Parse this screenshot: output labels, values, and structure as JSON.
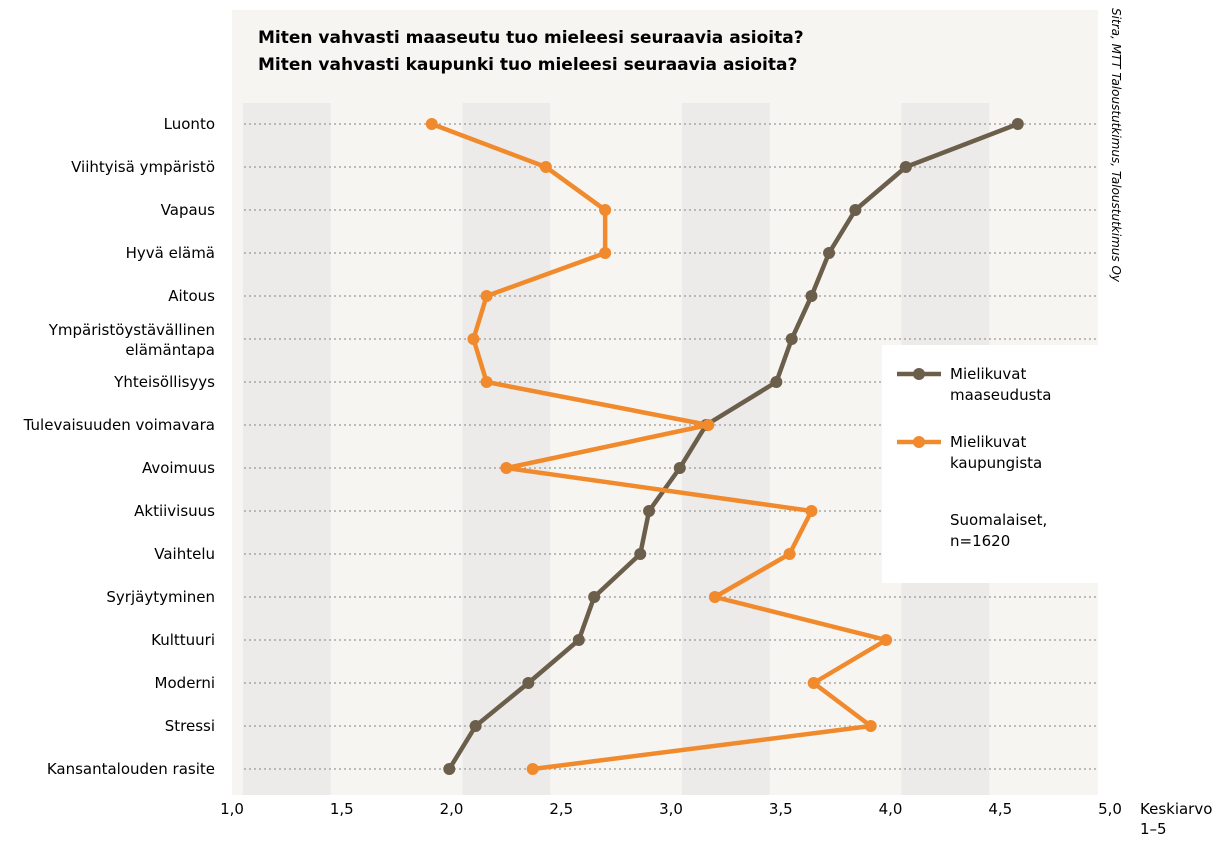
{
  "chart_data": {
    "type": "line",
    "orientation": "horizontal",
    "title": "Miten vahvasti maaseutu tuo mieleesi seuraavia asioita?",
    "subtitle": "Miten vahvasti kaupunki tuo mieleesi seuraavia asioita?",
    "xlabel": "Keskiarvo",
    "xlabel_sub": "1–5",
    "xlim": [
      1.0,
      5.0
    ],
    "xticks": [
      1.0,
      1.5,
      2.0,
      2.5,
      3.0,
      3.5,
      4.0,
      4.5,
      5.0
    ],
    "xtick_labels": [
      "1,0",
      "1,5",
      "2,0",
      "2,5",
      "3,0",
      "3,5",
      "4,0",
      "4,5",
      "5,0"
    ],
    "categories": [
      "Luonto",
      "Viihtyisä ympäristö",
      "Vapaus",
      "Hyvä elämä",
      "Aitous",
      "Ympäristöystävällinen elämäntapa",
      "Yhteisöllisyys",
      "Tulevaisuuden voimavara",
      "Avoimuus",
      "Aktiivisuus",
      "Vaihtelu",
      "Syrjäytyminen",
      "Kulttuuri",
      "Moderni",
      "Stressi",
      "Kansantalouden rasite"
    ],
    "category_lines": [
      [
        "Luonto"
      ],
      [
        "Viihtyisä ympäristö"
      ],
      [
        "Vapaus"
      ],
      [
        "Hyvä elämä"
      ],
      [
        "Aitous"
      ],
      [
        "Ympäristöystävällinen",
        "elämäntapa"
      ],
      [
        "Yhteisöllisyys"
      ],
      [
        "Tulevaisuuden voimavara"
      ],
      [
        "Avoimuus"
      ],
      [
        "Aktiivisuus"
      ],
      [
        "Vaihtelu"
      ],
      [
        "Syrjäytyminen"
      ],
      [
        "Kulttuuri"
      ],
      [
        "Moderni"
      ],
      [
        "Stressi"
      ],
      [
        "Kansantalouden rasite"
      ]
    ],
    "series": [
      {
        "name": "Mielikuvat maaseudusta",
        "name_lines": [
          "Mielikuvat",
          "maaseudusta"
        ],
        "color": "#6b5e4a",
        "values": [
          4.58,
          4.07,
          3.84,
          3.72,
          3.64,
          3.55,
          3.48,
          3.16,
          3.04,
          2.9,
          2.86,
          2.65,
          2.58,
          2.35,
          2.11,
          1.99
        ]
      },
      {
        "name": "Mielikuvat kaupungista",
        "name_lines": [
          "Mielikuvat",
          "kaupungista"
        ],
        "color": "#f08a2c",
        "values": [
          1.91,
          2.43,
          2.7,
          2.7,
          2.16,
          2.1,
          2.16,
          3.17,
          2.25,
          3.64,
          3.54,
          3.2,
          3.98,
          3.65,
          3.91,
          2.37
        ]
      }
    ],
    "annotation_lines": [
      "Suomalaiset,",
      "n=1620"
    ],
    "source": "Sitra, MTT Taloustutkimus, Taloustutkimus Oy",
    "grid": true,
    "legend_position": "right"
  },
  "colors": {
    "panel_background": "#f7f5f2",
    "band": "#ecebea",
    "gridline": "#9a9a9a"
  }
}
